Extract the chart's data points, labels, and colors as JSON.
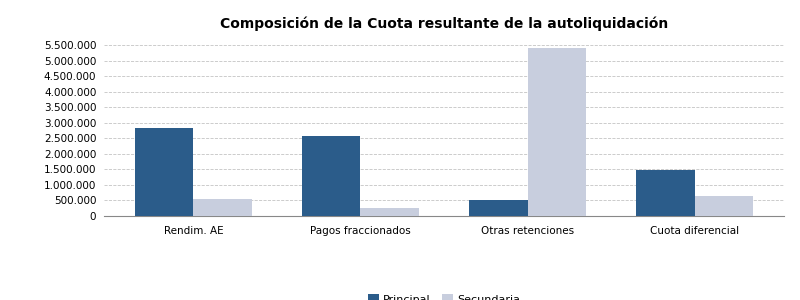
{
  "title": "Composición de la Cuota resultante de la autoliquidación",
  "categories": [
    "Rendim. AE",
    "Pagos fraccionados",
    "Otras retenciones",
    "Cuota diferencial"
  ],
  "principal": [
    2850000,
    2580000,
    530000,
    1480000
  ],
  "secundaria": [
    560000,
    250000,
    5400000,
    650000
  ],
  "principal_color": "#2B5C8A",
  "secundaria_color": "#C8CEDE",
  "background_color": "#FFFFFF",
  "grid_color": "#AAAAAA",
  "ylim": [
    0,
    5800000
  ],
  "yticks": [
    0,
    500000,
    1000000,
    1500000,
    2000000,
    2500000,
    3000000,
    3500000,
    4000000,
    4500000,
    5000000,
    5500000
  ],
  "legend_labels": [
    "Principal",
    "Secundaria"
  ],
  "bar_width": 0.35,
  "title_fontsize": 10
}
